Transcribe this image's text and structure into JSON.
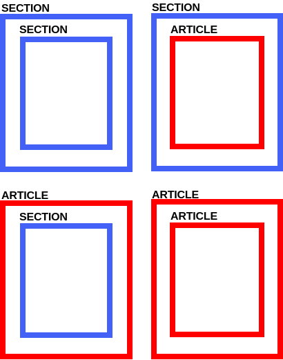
{
  "colors": {
    "section": "#4361f7",
    "article": "#ff0000"
  },
  "panels": [
    {
      "outer": {
        "kind": "section",
        "label": "SECTION"
      },
      "inner": {
        "kind": "section",
        "label": "SECTION"
      }
    },
    {
      "outer": {
        "kind": "section",
        "label": "SECTION"
      },
      "inner": {
        "kind": "article",
        "label": "ARTICLE"
      }
    },
    {
      "outer": {
        "kind": "article",
        "label": "ARTICLE"
      },
      "inner": {
        "kind": "section",
        "label": "SECTION"
      }
    },
    {
      "outer": {
        "kind": "article",
        "label": "ARTICLE"
      },
      "inner": {
        "kind": "article",
        "label": "ARTICLE"
      }
    }
  ]
}
